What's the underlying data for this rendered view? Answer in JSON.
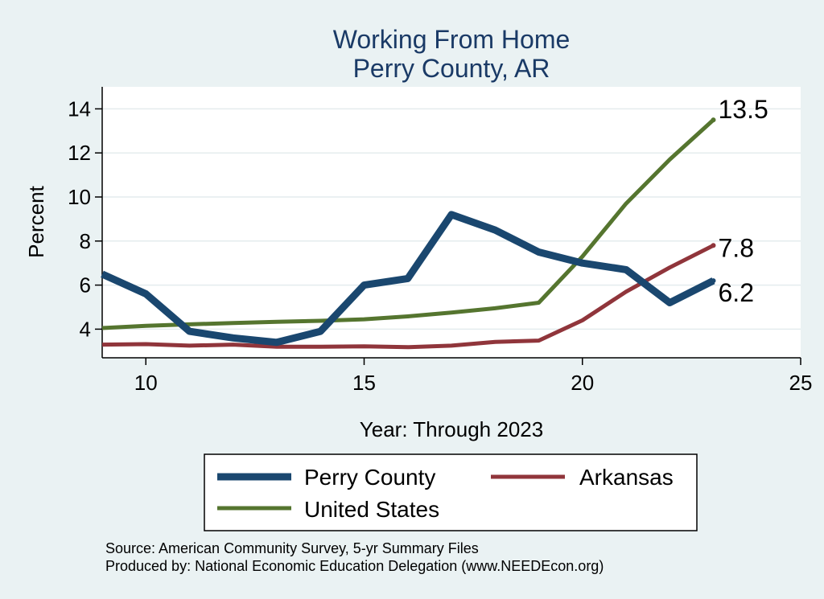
{
  "chart_data": {
    "type": "line",
    "title": [
      "Working From Home",
      "Perry County, AR"
    ],
    "xlabel": "Year: Through 2023",
    "ylabel": "Percent",
    "xlim": [
      9,
      25
    ],
    "ylim": [
      2.7,
      15
    ],
    "xticks": [
      10,
      15,
      20,
      25
    ],
    "yticks": [
      4,
      6,
      8,
      10,
      12,
      14
    ],
    "grid": true,
    "x": [
      9,
      10,
      11,
      12,
      13,
      14,
      15,
      16,
      17,
      18,
      19,
      20,
      21,
      22,
      23
    ],
    "series": [
      {
        "name": "Perry County",
        "color": "#1a476f",
        "width": 9,
        "values": [
          6.5,
          5.6,
          3.9,
          3.6,
          3.4,
          3.9,
          6.0,
          6.3,
          9.2,
          8.5,
          7.5,
          7.0,
          6.7,
          5.2,
          6.2
        ],
        "end_label": "6.2"
      },
      {
        "name": "Arkansas",
        "color": "#90353b",
        "width": 5,
        "values": [
          3.3,
          3.32,
          3.25,
          3.3,
          3.2,
          3.2,
          3.22,
          3.18,
          3.25,
          3.42,
          3.48,
          4.4,
          5.7,
          6.8,
          7.8
        ],
        "end_label": "7.8"
      },
      {
        "name": "United States",
        "color": "#55752f",
        "width": 5,
        "values": [
          4.05,
          4.15,
          4.22,
          4.28,
          4.33,
          4.38,
          4.45,
          4.58,
          4.75,
          4.95,
          5.2,
          7.3,
          9.7,
          11.7,
          13.5
        ],
        "end_label": "13.5"
      }
    ],
    "legend": {
      "position": "bottom",
      "entries": [
        "Perry County",
        "Arkansas",
        "United States"
      ]
    },
    "footer": [
      "Source: American Community Survey, 5-yr Summary Files",
      "Produced by: National Economic Education Delegation (www.NEEDEcon.org)"
    ]
  }
}
